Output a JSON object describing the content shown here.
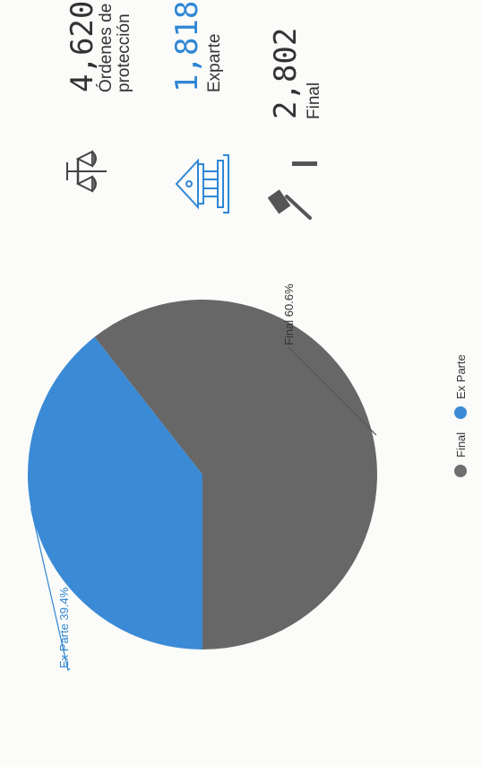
{
  "chart_data": {
    "type": "pie",
    "slices": [
      {
        "name": "Final",
        "value": 60.6,
        "label": "Final 60.6%",
        "color": "#676767"
      },
      {
        "name": "Ex Parte",
        "value": 39.4,
        "label": "Ex Parte 39.4%",
        "color": "#3a8ad6"
      }
    ],
    "legend": {
      "position": "bottom",
      "items": [
        "Final",
        "Ex Parte"
      ]
    }
  },
  "stats": [
    {
      "number": "4,620",
      "label_lines": [
        "Órdenes de",
        "protección"
      ],
      "number_color": "#333333",
      "icon": "scales-icon"
    },
    {
      "number": "1,818",
      "label_lines": [
        "Exparte"
      ],
      "number_color": "#2f86d5",
      "icon": "courthouse-icon"
    },
    {
      "number": "2,802",
      "label_lines": [
        "Final"
      ],
      "number_color": "#333333",
      "icon": "gavel-icon"
    }
  ],
  "colors": {
    "final": "#676767",
    "ex_parte": "#3a8ad6",
    "text": "#333333"
  }
}
